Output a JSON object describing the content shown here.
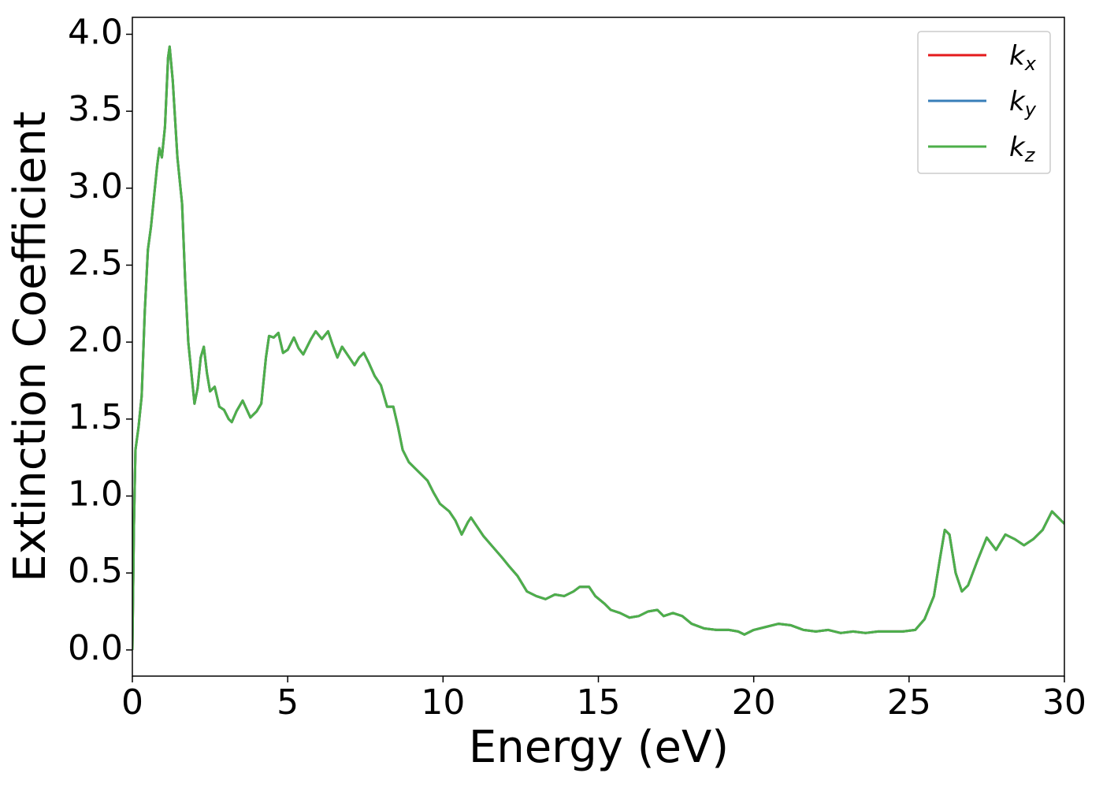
{
  "chart_data": {
    "type": "line",
    "xlabel": "Energy (eV)",
    "ylabel": "Extinction Coefficient",
    "xlim": [
      0,
      30
    ],
    "ylim": [
      -0.17,
      4.11
    ],
    "xticks": [
      0,
      5,
      10,
      15,
      20,
      25,
      30
    ],
    "yticks": [
      {
        "value": 0,
        "label": "0.0"
      },
      0.5,
      {
        "value": 1,
        "label": "1.0"
      },
      1.5,
      {
        "value": 2,
        "label": "2.0"
      },
      2.5,
      {
        "value": 3,
        "label": "3.0"
      },
      3.5,
      {
        "value": 4,
        "label": "4.0"
      }
    ],
    "legend": "upper right",
    "x": [
      0,
      0.05,
      0.1,
      0.2,
      0.3,
      0.4,
      0.5,
      0.6,
      0.7,
      0.8,
      0.87,
      0.95,
      1.05,
      1.15,
      1.2,
      1.3,
      1.45,
      1.6,
      1.7,
      1.8,
      1.9,
      2.0,
      2.1,
      2.2,
      2.3,
      2.4,
      2.5,
      2.65,
      2.8,
      2.95,
      3.1,
      3.2,
      3.35,
      3.55,
      3.8,
      4.0,
      4.15,
      4.3,
      4.4,
      4.55,
      4.7,
      4.85,
      5.0,
      5.2,
      5.35,
      5.5,
      5.75,
      5.9,
      6.1,
      6.3,
      6.45,
      6.6,
      6.75,
      6.95,
      7.15,
      7.3,
      7.45,
      7.6,
      7.8,
      8.0,
      8.2,
      8.4,
      8.55,
      8.7,
      8.9,
      9.1,
      9.3,
      9.5,
      9.7,
      9.9,
      10.2,
      10.4,
      10.6,
      10.8,
      10.9,
      11.1,
      11.3,
      11.6,
      11.9,
      12.1,
      12.4,
      12.7,
      13.0,
      13.3,
      13.6,
      13.9,
      14.2,
      14.4,
      14.7,
      14.9,
      15.2,
      15.4,
      15.7,
      16.0,
      16.3,
      16.6,
      16.9,
      17.1,
      17.4,
      17.7,
      18.0,
      18.4,
      18.8,
      19.2,
      19.5,
      19.7,
      20.0,
      20.4,
      20.8,
      21.2,
      21.6,
      22.0,
      22.4,
      22.8,
      23.2,
      23.6,
      24.0,
      24.4,
      24.8,
      25.2,
      25.5,
      25.8,
      26.0,
      26.15,
      26.3,
      26.5,
      26.7,
      26.9,
      27.2,
      27.5,
      27.8,
      28.1,
      28.4,
      28.7,
      29.0,
      29.3,
      29.6,
      29.8,
      30.0
    ],
    "series": [
      {
        "name": "kx",
        "color": "#e41a1c",
        "values": [
          0,
          0.8,
          1.3,
          1.45,
          1.65,
          2.2,
          2.6,
          2.75,
          2.95,
          3.15,
          3.26,
          3.2,
          3.4,
          3.85,
          3.92,
          3.7,
          3.2,
          2.9,
          2.4,
          2.0,
          1.8,
          1.6,
          1.7,
          1.9,
          1.97,
          1.8,
          1.68,
          1.71,
          1.58,
          1.56,
          1.5,
          1.48,
          1.55,
          1.62,
          1.51,
          1.55,
          1.6,
          1.9,
          2.04,
          2.03,
          2.06,
          1.93,
          1.95,
          2.03,
          1.96,
          1.92,
          2.02,
          2.07,
          2.02,
          2.07,
          1.98,
          1.9,
          1.97,
          1.91,
          1.85,
          1.9,
          1.93,
          1.87,
          1.78,
          1.72,
          1.58,
          1.58,
          1.45,
          1.3,
          1.22,
          1.18,
          1.14,
          1.1,
          1.02,
          0.95,
          0.9,
          0.84,
          0.75,
          0.83,
          0.86,
          0.8,
          0.74,
          0.67,
          0.6,
          0.55,
          0.48,
          0.38,
          0.35,
          0.33,
          0.36,
          0.35,
          0.38,
          0.41,
          0.41,
          0.35,
          0.3,
          0.26,
          0.24,
          0.21,
          0.22,
          0.25,
          0.26,
          0.22,
          0.24,
          0.22,
          0.17,
          0.14,
          0.13,
          0.13,
          0.12,
          0.1,
          0.13,
          0.15,
          0.17,
          0.16,
          0.13,
          0.12,
          0.13,
          0.11,
          0.12,
          0.11,
          0.12,
          0.12,
          0.12,
          0.13,
          0.2,
          0.35,
          0.6,
          0.78,
          0.75,
          0.5,
          0.38,
          0.42,
          0.58,
          0.73,
          0.65,
          0.75,
          0.72,
          0.68,
          0.72,
          0.78,
          0.9,
          0.86,
          0.82
        ]
      },
      {
        "name": "ky",
        "color": "#377eb8",
        "values": [
          0,
          0.8,
          1.3,
          1.45,
          1.65,
          2.2,
          2.6,
          2.75,
          2.95,
          3.15,
          3.26,
          3.2,
          3.4,
          3.85,
          3.92,
          3.7,
          3.2,
          2.9,
          2.4,
          2.0,
          1.8,
          1.6,
          1.7,
          1.9,
          1.97,
          1.8,
          1.68,
          1.71,
          1.58,
          1.56,
          1.5,
          1.48,
          1.55,
          1.62,
          1.51,
          1.55,
          1.6,
          1.9,
          2.04,
          2.03,
          2.06,
          1.93,
          1.95,
          2.03,
          1.96,
          1.92,
          2.02,
          2.07,
          2.02,
          2.07,
          1.98,
          1.9,
          1.97,
          1.91,
          1.85,
          1.9,
          1.93,
          1.87,
          1.78,
          1.72,
          1.58,
          1.58,
          1.45,
          1.3,
          1.22,
          1.18,
          1.14,
          1.1,
          1.02,
          0.95,
          0.9,
          0.84,
          0.75,
          0.83,
          0.86,
          0.8,
          0.74,
          0.67,
          0.6,
          0.55,
          0.48,
          0.38,
          0.35,
          0.33,
          0.36,
          0.35,
          0.38,
          0.41,
          0.41,
          0.35,
          0.3,
          0.26,
          0.24,
          0.21,
          0.22,
          0.25,
          0.26,
          0.22,
          0.24,
          0.22,
          0.17,
          0.14,
          0.13,
          0.13,
          0.12,
          0.1,
          0.13,
          0.15,
          0.17,
          0.16,
          0.13,
          0.12,
          0.13,
          0.11,
          0.12,
          0.11,
          0.12,
          0.12,
          0.12,
          0.13,
          0.2,
          0.35,
          0.6,
          0.78,
          0.75,
          0.5,
          0.38,
          0.42,
          0.58,
          0.73,
          0.65,
          0.75,
          0.72,
          0.68,
          0.72,
          0.78,
          0.9,
          0.86,
          0.82
        ]
      },
      {
        "name": "kz",
        "color": "#4daf4a",
        "values": [
          0,
          0.8,
          1.3,
          1.45,
          1.65,
          2.2,
          2.6,
          2.75,
          2.95,
          3.15,
          3.26,
          3.2,
          3.4,
          3.85,
          3.92,
          3.7,
          3.2,
          2.9,
          2.4,
          2.0,
          1.8,
          1.6,
          1.7,
          1.9,
          1.97,
          1.8,
          1.68,
          1.71,
          1.58,
          1.56,
          1.5,
          1.48,
          1.55,
          1.62,
          1.51,
          1.55,
          1.6,
          1.9,
          2.04,
          2.03,
          2.06,
          1.93,
          1.95,
          2.03,
          1.96,
          1.92,
          2.02,
          2.07,
          2.02,
          2.07,
          1.98,
          1.9,
          1.97,
          1.91,
          1.85,
          1.9,
          1.93,
          1.87,
          1.78,
          1.72,
          1.58,
          1.58,
          1.45,
          1.3,
          1.22,
          1.18,
          1.14,
          1.1,
          1.02,
          0.95,
          0.9,
          0.84,
          0.75,
          0.83,
          0.86,
          0.8,
          0.74,
          0.67,
          0.6,
          0.55,
          0.48,
          0.38,
          0.35,
          0.33,
          0.36,
          0.35,
          0.38,
          0.41,
          0.41,
          0.35,
          0.3,
          0.26,
          0.24,
          0.21,
          0.22,
          0.25,
          0.26,
          0.22,
          0.24,
          0.22,
          0.17,
          0.14,
          0.13,
          0.13,
          0.12,
          0.1,
          0.13,
          0.15,
          0.17,
          0.16,
          0.13,
          0.12,
          0.13,
          0.11,
          0.12,
          0.11,
          0.12,
          0.12,
          0.12,
          0.13,
          0.2,
          0.35,
          0.6,
          0.78,
          0.75,
          0.5,
          0.38,
          0.42,
          0.58,
          0.73,
          0.65,
          0.75,
          0.72,
          0.68,
          0.72,
          0.78,
          0.9,
          0.86,
          0.82
        ]
      }
    ]
  }
}
